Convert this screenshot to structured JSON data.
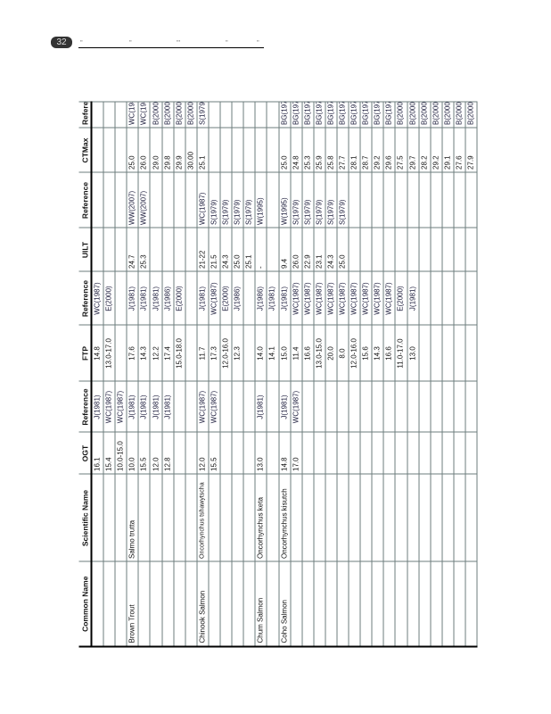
{
  "page": {
    "number": "32"
  },
  "table": {
    "headers": [
      "Common Name",
      "Scientific Name",
      "OGT",
      "Reference",
      "FTP",
      "Reference",
      "UILT",
      "Reference",
      "CTMax",
      "Reference"
    ],
    "rows": [
      [
        "",
        "",
        "16.1",
        "J(1981)",
        "14.8",
        "WC(1987)",
        "",
        "",
        "",
        ""
      ],
      [
        "",
        "",
        "15.4",
        "WC(1987)",
        "13.0-17.0",
        "E(2000)",
        "",
        "",
        "",
        ""
      ],
      [
        "",
        "",
        "10.0-15.0",
        "WC(1987)",
        "",
        "",
        "",
        "",
        "",
        ""
      ],
      [
        "Brown Trout",
        "Salmo trutta",
        "10.0",
        "J(1981)",
        "17.6",
        "J(1981)",
        "24.7",
        "WW(2007)",
        "25.0",
        "WC(1987)"
      ],
      [
        "",
        "",
        "15.5",
        "J(1981)",
        "14.3",
        "J(1981)",
        "25.3",
        "WW(2007)",
        "26.0",
        "WC(1987)"
      ],
      [
        "",
        "",
        "12.0",
        "J(1981)",
        "12.2",
        "J(1981)",
        "",
        "",
        "29.0",
        "B(2000)"
      ],
      [
        "",
        "",
        "12.8",
        "J(1981)",
        "17.4",
        "J(1986)",
        "",
        "",
        "29.8",
        "B(2000)"
      ],
      [
        "",
        "",
        "",
        "",
        "15.0-18.0",
        "E(2000)",
        "",
        "",
        "29.9",
        "B(2000)"
      ],
      [
        "",
        "",
        "",
        "",
        "",
        "",
        "",
        "",
        "30.00",
        "B(2000)"
      ],
      [
        "Chinook Salmon",
        "Oncorhynchus tshawytscha",
        "12.0",
        "WC(1987)",
        "11.7",
        "J(1981)",
        "21-22",
        "WC(1987)",
        "25.1",
        "S(1979)"
      ],
      [
        "",
        "",
        "15.5",
        "WC(1987)",
        "17.3",
        "WC(1987)",
        "21.5",
        "S(1979)",
        "",
        ""
      ],
      [
        "",
        "",
        "",
        "",
        "12.0-16.0",
        "E(2000)",
        "24.3",
        "S(1979)",
        "",
        ""
      ],
      [
        "",
        "",
        "",
        "",
        "12.3",
        "J(1986)",
        "25.0",
        "S(1979)",
        "",
        ""
      ],
      [
        "",
        "",
        "",
        "",
        "",
        "",
        "25.1",
        "S(1979)",
        "",
        ""
      ],
      [
        "Chum Salmon",
        "Oncorhynchus keta",
        "13.0",
        "J(1981)",
        "14.0",
        "J(1986)",
        "-",
        "W(1995)",
        "",
        ""
      ],
      [
        "",
        "",
        "",
        "",
        "14.1",
        "J(1981)",
        "",
        "",
        "",
        ""
      ],
      [
        "Coho Salmon",
        "Oncorhynchus kisutch",
        "14.8",
        "J(1981)",
        "15.0",
        "J(1981)",
        "9.4",
        "W(1995)",
        "25.0",
        "BG(1979)"
      ],
      [
        "",
        "",
        "17.0",
        "WC(1987)",
        "11.4",
        "WC(1987)",
        "26.0",
        "S(1979)",
        "24.8",
        "BG(1979)"
      ],
      [
        "",
        "",
        "",
        "",
        "16.6",
        "WC(1987)",
        "22.9",
        "S(1979)",
        "25.3",
        "BG(1979)"
      ],
      [
        "",
        "",
        "",
        "",
        "13.0-15.0",
        "WC(1987)",
        "23.1",
        "S(1979)",
        "25.9",
        "BG(1979)"
      ],
      [
        "",
        "",
        "",
        "",
        "20.0",
        "WC(1987)",
        "24.3",
        "S(1979)",
        "25.8",
        "BG(1979)"
      ],
      [
        "",
        "",
        "",
        "",
        "8.0",
        "WC(1987)",
        "25.0",
        "S(1979)",
        "27.7",
        "BG(1979)"
      ],
      [
        "",
        "",
        "",
        "",
        "12.0-16.0",
        "WC(1987)",
        "",
        "",
        "28.1",
        "BG(1979)"
      ],
      [
        "",
        "",
        "",
        "",
        "15.6",
        "WC(1987)",
        "",
        "",
        "28.7",
        "BG(1979)"
      ],
      [
        "",
        "",
        "",
        "",
        "14.3",
        "WC(1987)",
        "",
        "",
        "29.2",
        "BG(1979)"
      ],
      [
        "",
        "",
        "",
        "",
        "16.6",
        "WC(1987)",
        "",
        "",
        "29.6",
        "BG(1979)"
      ],
      [
        "",
        "",
        "",
        "",
        "11.0-17.0",
        "E(2000)",
        "",
        "",
        "27.5",
        "B(2000)"
      ],
      [
        "",
        "",
        "",
        "",
        "13.0",
        "J(1981)",
        "",
        "",
        "29.7",
        "B(2000)"
      ],
      [
        "",
        "",
        "",
        "",
        "",
        "",
        "",
        "",
        "28.2",
        "B(2000)"
      ],
      [
        "",
        "",
        "",
        "",
        "",
        "",
        "",
        "",
        "29.2",
        "B(2000)"
      ],
      [
        "",
        "",
        "",
        "",
        "",
        "",
        "",
        "",
        "29.1",
        "B(2000)"
      ],
      [
        "",
        "",
        "",
        "",
        "",
        "",
        "",
        "",
        "27.6",
        "B(2000)"
      ],
      [
        "",
        "",
        "",
        "",
        "",
        "",
        "",
        "",
        "27.9",
        "B(2000)"
      ]
    ]
  }
}
